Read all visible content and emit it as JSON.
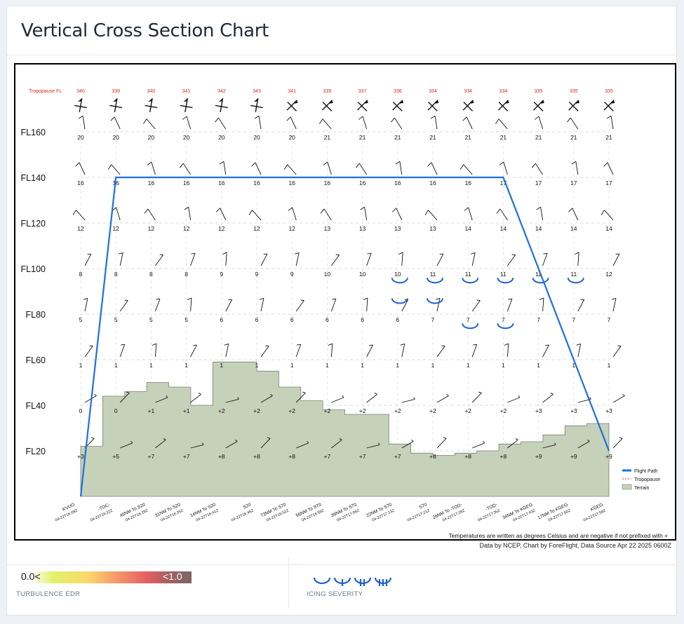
{
  "page_title": "Vertical Cross Section Chart",
  "colors": {
    "flight_path": "#1f6fe0",
    "tropopause": "#d42a1a",
    "terrain_fill": "#c5d1b9",
    "terrain_stroke": "#7a8371",
    "icing": "#1f5fd0"
  },
  "chart_data": {
    "type": "cross-section",
    "levels": [
      "FL20",
      "FL40",
      "FL60",
      "FL80",
      "FL100",
      "FL120",
      "FL140",
      "FL160"
    ],
    "waypoints": [
      {
        "label": "KVUO",
        "time": "04-22T16:09Z"
      },
      {
        "label": "-TOC-",
        "time": "04-22T16:22Z"
      },
      {
        "label": "46NM To S20",
        "time": "04-22T16:29Z"
      },
      {
        "label": "31NM To S20",
        "time": "04-22T16:35Z"
      },
      {
        "label": "14NM To S20",
        "time": "04-22T16:41Z"
      },
      {
        "label": "S20",
        "time": "04-22T16:45Z"
      },
      {
        "label": "73NM To S70",
        "time": "04-22T16:52Z"
      },
      {
        "label": "56NM To S70",
        "time": "04-22T16:59Z"
      },
      {
        "label": "39NM To S70",
        "time": "04-22T17:06Z"
      },
      {
        "label": "22NM To S70",
        "time": "04-22T17:13Z"
      },
      {
        "label": "S70",
        "time": "04-22T17:21Z"
      },
      {
        "label": "26NM To -TOD-",
        "time": "04-22T17:28Z"
      },
      {
        "label": "-TOD-",
        "time": "04-22T17:35Z"
      },
      {
        "label": "34NM To KGEG",
        "time": "04-22T17:43Z"
      },
      {
        "label": "17NM To KGEG",
        "time": "04-22T17:50Z"
      },
      {
        "label": "KGEG",
        "time": "04-22T17:58Z"
      }
    ],
    "tropopause_label": "Tropopause FL",
    "tropopause_fl": [
      340,
      339,
      340,
      341,
      342,
      343,
      341,
      339,
      337,
      336,
      334,
      334,
      334,
      335,
      335,
      335
    ],
    "temperatures": [
      {
        "level": "FL160",
        "values": [
          "20",
          "20",
          "20",
          "20",
          "20",
          "20",
          "20",
          "21",
          "21",
          "21",
          "21",
          "21",
          "21",
          "21",
          "21",
          "21"
        ]
      },
      {
        "level": "FL140",
        "values": [
          "16",
          "16",
          "16",
          "16",
          "16",
          "16",
          "16",
          "16",
          "16",
          "16",
          "16",
          "16",
          "17",
          "17",
          "17",
          "17"
        ]
      },
      {
        "level": "FL120",
        "values": [
          "12",
          "12",
          "12",
          "12",
          "12",
          "12",
          "12",
          "13",
          "13",
          "13",
          "13",
          "14",
          "14",
          "14",
          "14",
          "14"
        ]
      },
      {
        "level": "FL100",
        "values": [
          "8",
          "8",
          "8",
          "8",
          "9",
          "9",
          "9",
          "10",
          "10",
          "10",
          "11",
          "11",
          "11",
          "11",
          "11",
          "12"
        ]
      },
      {
        "level": "FL80",
        "values": [
          "5",
          "5",
          "5",
          "5",
          "6",
          "6",
          "6",
          "6",
          "6",
          "6",
          "7",
          "7",
          "7",
          "7",
          "7",
          "7"
        ]
      },
      {
        "level": "FL60",
        "values": [
          "1",
          "1",
          "1",
          "1",
          "1",
          "1",
          "1",
          "1",
          "1",
          "1",
          "1",
          "1",
          "1",
          "1",
          "1",
          "1"
        ]
      },
      {
        "level": "FL40",
        "values": [
          "0",
          "0",
          "+1",
          "+1",
          "+2",
          "+2",
          "+2",
          "+2",
          "+2",
          "+2",
          "+2",
          "+2",
          "+2",
          "+3",
          "+3",
          "+3"
        ]
      },
      {
        "level": "FL20",
        "values": [
          "+3",
          "+5",
          "+7",
          "+7",
          "+8",
          "+8",
          "+8",
          "+7",
          "+7",
          "+7",
          "+8",
          "+8",
          "+8",
          "+9",
          "+9",
          "+9"
        ]
      }
    ],
    "flight_path_fl": [
      0,
      140,
      140,
      140,
      140,
      140,
      140,
      140,
      140,
      140,
      140,
      140,
      140,
      110,
      75,
      20
    ],
    "terrain_fl": [
      22,
      44,
      46,
      50,
      48,
      40,
      59,
      59,
      55,
      48,
      42,
      38,
      36,
      36,
      23,
      19,
      18,
      19,
      20,
      23,
      24,
      27,
      31,
      32
    ],
    "icing": [
      {
        "wp": 9,
        "fl": 95
      },
      {
        "wp": 10,
        "fl": 95
      },
      {
        "wp": 11,
        "fl": 95
      },
      {
        "wp": 12,
        "fl": 95
      },
      {
        "wp": 13,
        "fl": 95
      },
      {
        "wp": 14,
        "fl": 95
      },
      {
        "wp": 9,
        "fl": 86
      },
      {
        "wp": 10,
        "fl": 86
      },
      {
        "wp": 11,
        "fl": 75
      },
      {
        "wp": 12,
        "fl": 75
      }
    ],
    "legend": [
      "Flight Path",
      "Tropopause",
      "Terrain"
    ],
    "footnote": "Temperatures are written as degrees Celsius and are negative if not prefixed with +",
    "credit": "Data by NCEP, Chart by ForeFlight, Data Source Apr 22 2025 0600Z"
  },
  "turbulence": {
    "min_label": "0.0<",
    "max_label": "<1.0",
    "label": "TURBULENCE EDR"
  },
  "icing_legend": {
    "label": "ICING SEVERITY"
  }
}
